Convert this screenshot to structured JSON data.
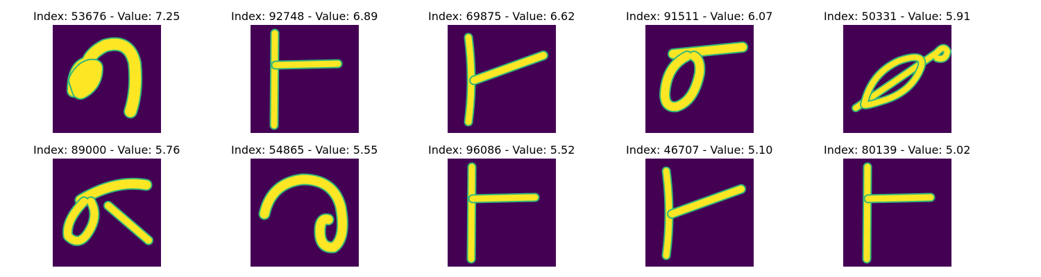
{
  "panels": [
    {
      "title": "Index: 53676 - Value: 7.25",
      "glyph": "hook"
    },
    {
      "title": "Index: 92748 - Value: 6.89",
      "glyph": "t-bar"
    },
    {
      "title": "Index: 69875 - Value: 6.62",
      "glyph": "t-slant"
    },
    {
      "title": "Index: 91511 - Value: 6.07",
      "glyph": "loop-bar"
    },
    {
      "title": "Index: 50331 - Value: 5.91",
      "glyph": "fish"
    },
    {
      "title": "Index: 89000 - Value: 5.76",
      "glyph": "loop-cross"
    },
    {
      "title": "Index: 54865 - Value: 5.55",
      "glyph": "curl"
    },
    {
      "title": "Index: 96086 - Value: 5.52",
      "glyph": "t-bar"
    },
    {
      "title": "Index: 46707 - Value: 5.10",
      "glyph": "t-slant"
    },
    {
      "title": "Index: 80139 - Value: 5.02",
      "glyph": "t-bar"
    }
  ],
  "colors": {
    "background": "#440154",
    "stroke": "#fde725",
    "edge": "#35b779"
  }
}
